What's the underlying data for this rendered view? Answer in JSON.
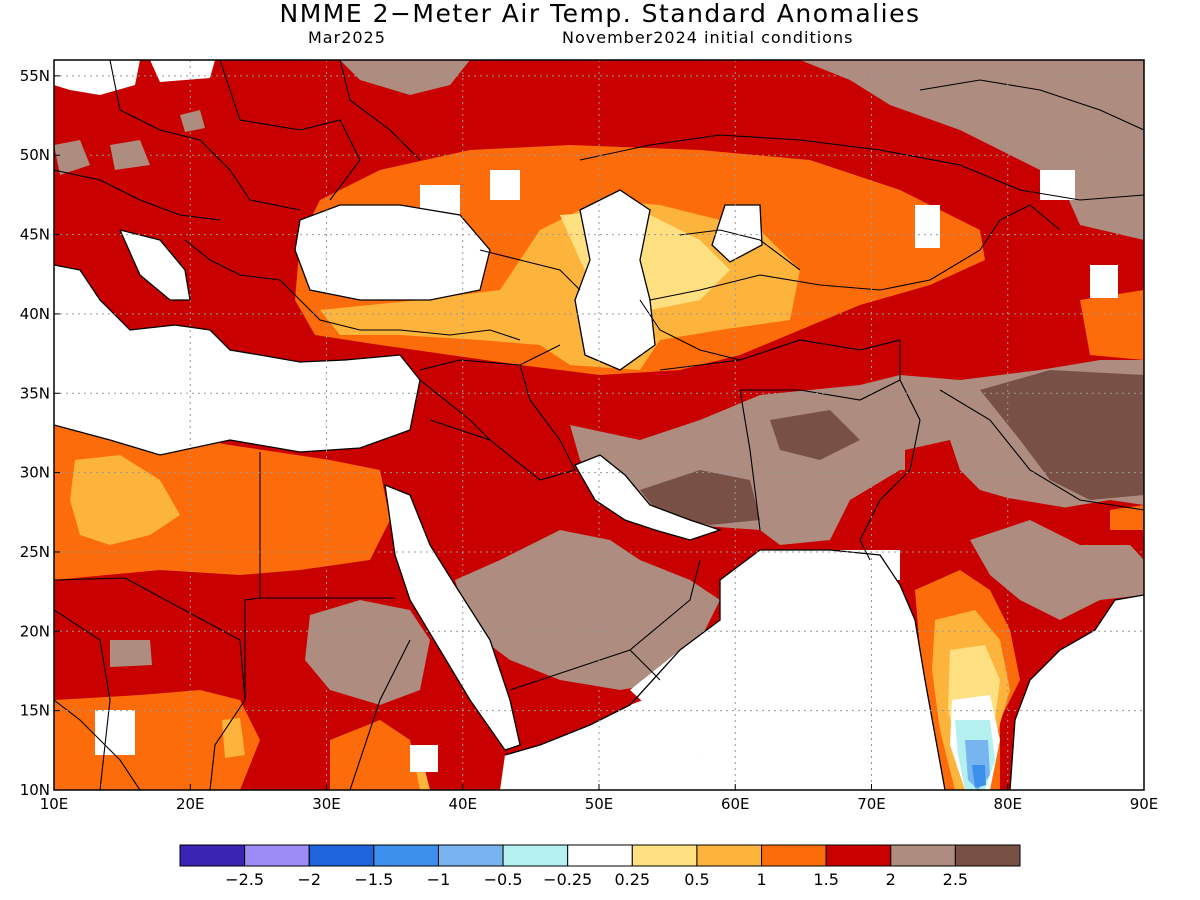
{
  "title": "NMME 2−Meter Air Temp. Standard Anomalies",
  "subtitle_left": "Mar2025",
  "subtitle_right": "November2024 initial conditions",
  "map": {
    "lon_range": [
      10,
      90
    ],
    "lat_range": [
      10,
      56
    ],
    "lon_ticks": [
      {
        "value": 10,
        "label": "10E"
      },
      {
        "value": 20,
        "label": "20E"
      },
      {
        "value": 30,
        "label": "30E"
      },
      {
        "value": 40,
        "label": "40E"
      },
      {
        "value": 50,
        "label": "50E"
      },
      {
        "value": 60,
        "label": "60E"
      },
      {
        "value": 70,
        "label": "70E"
      },
      {
        "value": 80,
        "label": "80E"
      },
      {
        "value": 90,
        "label": "90E"
      }
    ],
    "lat_ticks": [
      {
        "value": 55,
        "label": "55N"
      },
      {
        "value": 50,
        "label": "50N"
      },
      {
        "value": 45,
        "label": "45N"
      },
      {
        "value": 40,
        "label": "40N"
      },
      {
        "value": 35,
        "label": "35N"
      },
      {
        "value": 30,
        "label": "30N"
      },
      {
        "value": 25,
        "label": "25N"
      },
      {
        "value": 20,
        "label": "20N"
      },
      {
        "value": 15,
        "label": "15N"
      },
      {
        "value": 10,
        "label": "10N"
      }
    ],
    "grid": true
  },
  "colorbar": {
    "colors": [
      "#3a24b4",
      "#9e8cf6",
      "#1e64dc",
      "#3c90ec",
      "#78b4f0",
      "#b4f0f0",
      "#ffffff",
      "#fee080",
      "#fdb43c",
      "#fd6c0a",
      "#c80000",
      "#ae8c80",
      "#785046"
    ],
    "labels": [
      "−2.5",
      "−2",
      "−1.5",
      "−1",
      "−0.5",
      "−0.25",
      "0.25",
      "0.5",
      "1",
      "1.5",
      "2",
      "2.5"
    ]
  }
}
